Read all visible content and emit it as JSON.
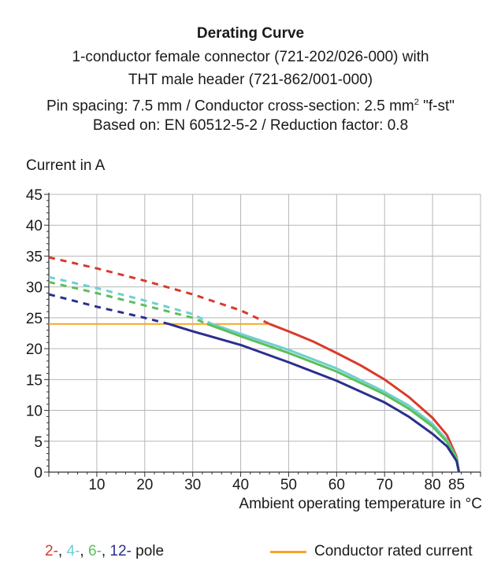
{
  "chart_data": {
    "type": "line",
    "title": "Derating Curve",
    "subtitle": [
      "1-conductor female connector (721-202/026-000) with",
      "THT male header (721-862/001-000)",
      "Pin spacing: 7.5 mm / Conductor cross-section: 2.5 mm",
      "2",
      " \"f-st\"",
      "Based on: EN 60512-5-2 / Reduction factor: 0.8"
    ],
    "xlabel": "Ambient operating temperature in °C",
    "ylabel": "Current in A",
    "xlim": [
      0,
      90
    ],
    "ylim": [
      0,
      45
    ],
    "xticks": [
      10,
      20,
      30,
      40,
      50,
      60,
      70,
      80,
      85
    ],
    "yticks": [
      0,
      5,
      10,
      15,
      20,
      25,
      30,
      35,
      40,
      45
    ],
    "grid": true,
    "series": [
      {
        "name": "2-",
        "color": "#d93a2b",
        "dashed": [
          [
            0,
            34.8
          ],
          [
            10,
            33.0
          ],
          [
            20,
            31.0
          ],
          [
            30,
            28.8
          ],
          [
            40,
            26.2
          ],
          [
            46,
            24.0
          ]
        ],
        "solid": [
          [
            46,
            24.0
          ],
          [
            50,
            22.8
          ],
          [
            55,
            21.2
          ],
          [
            60,
            19.3
          ],
          [
            65,
            17.3
          ],
          [
            70,
            15.0
          ],
          [
            75,
            12.2
          ],
          [
            80,
            8.8
          ],
          [
            83,
            6.0
          ],
          [
            85,
            2.5
          ],
          [
            85.5,
            0
          ]
        ]
      },
      {
        "name": "4-",
        "color": "#6fcfd0",
        "dashed": [
          [
            0,
            31.6
          ],
          [
            10,
            29.8
          ],
          [
            20,
            27.8
          ],
          [
            30,
            25.6
          ],
          [
            34,
            24.0
          ]
        ],
        "solid": [
          [
            34,
            24.0
          ],
          [
            40,
            22.4
          ],
          [
            50,
            19.8
          ],
          [
            60,
            16.8
          ],
          [
            70,
            13.0
          ],
          [
            75,
            10.8
          ],
          [
            80,
            7.8
          ],
          [
            83,
            5.2
          ],
          [
            85,
            2.3
          ],
          [
            85.5,
            0
          ]
        ]
      },
      {
        "name": "6-",
        "color": "#5cbf5a",
        "dashed": [
          [
            0,
            30.8
          ],
          [
            10,
            29.0
          ],
          [
            20,
            27.0
          ],
          [
            30,
            25.0
          ],
          [
            33,
            24.0
          ]
        ],
        "solid": [
          [
            33,
            24.0
          ],
          [
            40,
            22.0
          ],
          [
            50,
            19.3
          ],
          [
            60,
            16.3
          ],
          [
            70,
            12.6
          ],
          [
            75,
            10.3
          ],
          [
            80,
            7.4
          ],
          [
            83,
            4.9
          ],
          [
            85,
            2.2
          ],
          [
            85.5,
            0
          ]
        ]
      },
      {
        "name": "12-",
        "color": "#2b2f8e",
        "dashed": [
          [
            0,
            28.8
          ],
          [
            10,
            26.8
          ],
          [
            20,
            25.0
          ],
          [
            25,
            24.0
          ]
        ],
        "solid": [
          [
            25,
            24.0
          ],
          [
            30,
            22.8
          ],
          [
            40,
            20.6
          ],
          [
            50,
            17.8
          ],
          [
            60,
            14.8
          ],
          [
            70,
            11.3
          ],
          [
            75,
            9.0
          ],
          [
            80,
            6.2
          ],
          [
            83,
            4.2
          ],
          [
            85,
            1.8
          ],
          [
            85.5,
            0
          ]
        ]
      }
    ],
    "rated_current": {
      "name": "Conductor rated current",
      "color": "#f5a623",
      "x": [
        0,
        46
      ],
      "y": 24.0
    },
    "legend": {
      "poles": [
        {
          "text": "2-",
          "color": "#d93a2b"
        },
        {
          "text": ", ",
          "color": "#1a1a1a"
        },
        {
          "text": "4-",
          "color": "#6fcfd0"
        },
        {
          "text": ", ",
          "color": "#1a1a1a"
        },
        {
          "text": "6-",
          "color": "#5cbf5a"
        },
        {
          "text": ", ",
          "color": "#1a1a1a"
        },
        {
          "text": "12-",
          "color": "#2b2f8e"
        },
        {
          "text": " pole",
          "color": "#1a1a1a"
        }
      ],
      "rated_label": "Conductor rated current"
    }
  }
}
